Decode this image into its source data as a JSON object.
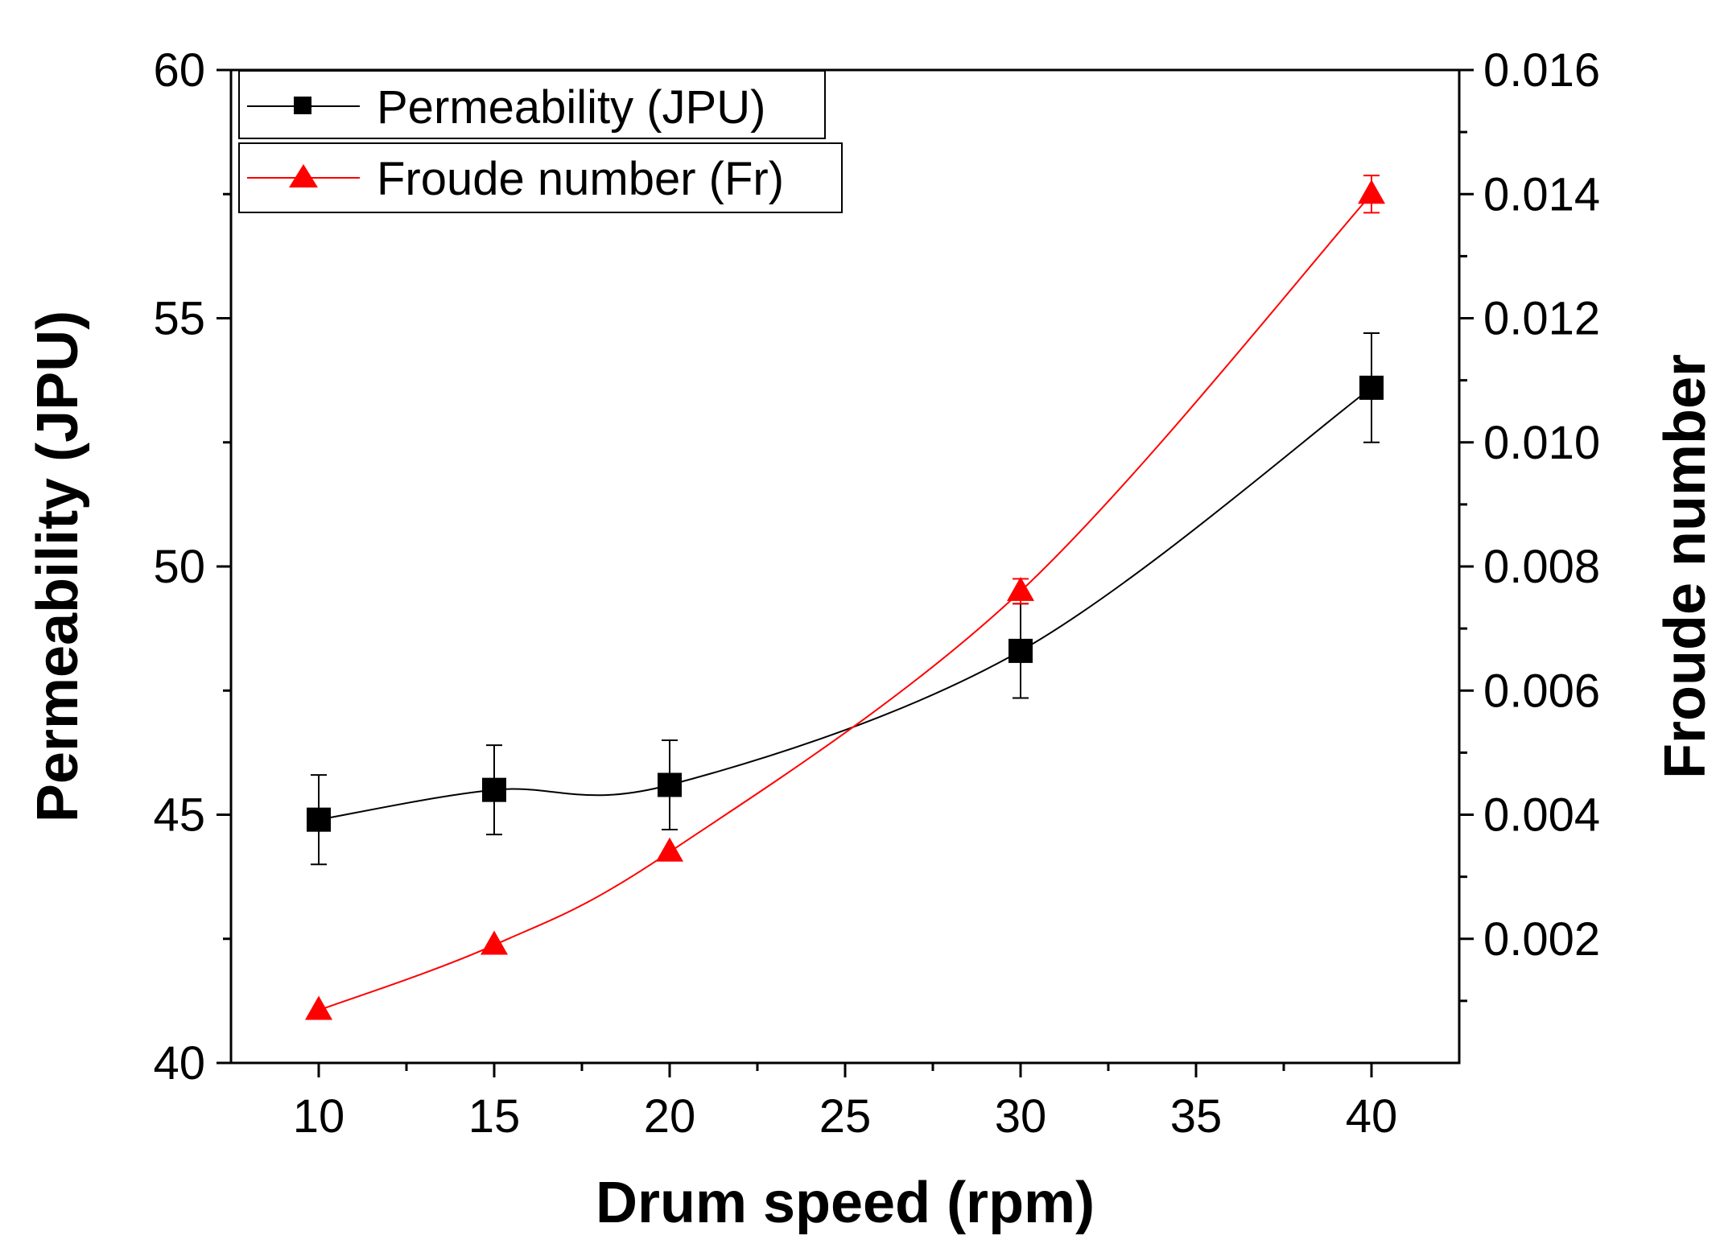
{
  "chart_data": {
    "type": "line",
    "title": "",
    "xlabel": "Drum speed (rpm)",
    "ylabel": "Permeability (JPU)",
    "y2label": "Froude number",
    "xlim": [
      7.5,
      42.5
    ],
    "ylim": [
      40,
      60
    ],
    "y2lim": [
      0,
      0.016
    ],
    "x_ticks": [
      "10",
      "15",
      "20",
      "25",
      "30",
      "35",
      "40"
    ],
    "y_ticks": [
      "40",
      "45",
      "50",
      "55",
      "60"
    ],
    "y2_ticks": [
      "0.002",
      "0.004",
      "0.006",
      "0.008",
      "0.010",
      "0.012",
      "0.014",
      "0.016"
    ],
    "legend_position": "top-left",
    "series": [
      {
        "name": "Permeability (JPU)",
        "axis": "left",
        "color": "#000000",
        "marker": "square",
        "x": [
          10,
          15,
          20,
          30,
          40
        ],
        "values": [
          44.9,
          45.5,
          45.6,
          48.3,
          53.6
        ],
        "errors": [
          0.9,
          0.9,
          0.9,
          0.95,
          1.1
        ]
      },
      {
        "name": "Froude number (Fr)",
        "axis": "right",
        "color": "#ff0000",
        "marker": "triangle",
        "x": [
          10,
          15,
          20,
          30,
          40
        ],
        "values": [
          0.00085,
          0.0019,
          0.0034,
          0.0076,
          0.014
        ],
        "errors": [
          0,
          0,
          0,
          0.0002,
          0.0003
        ]
      }
    ]
  }
}
